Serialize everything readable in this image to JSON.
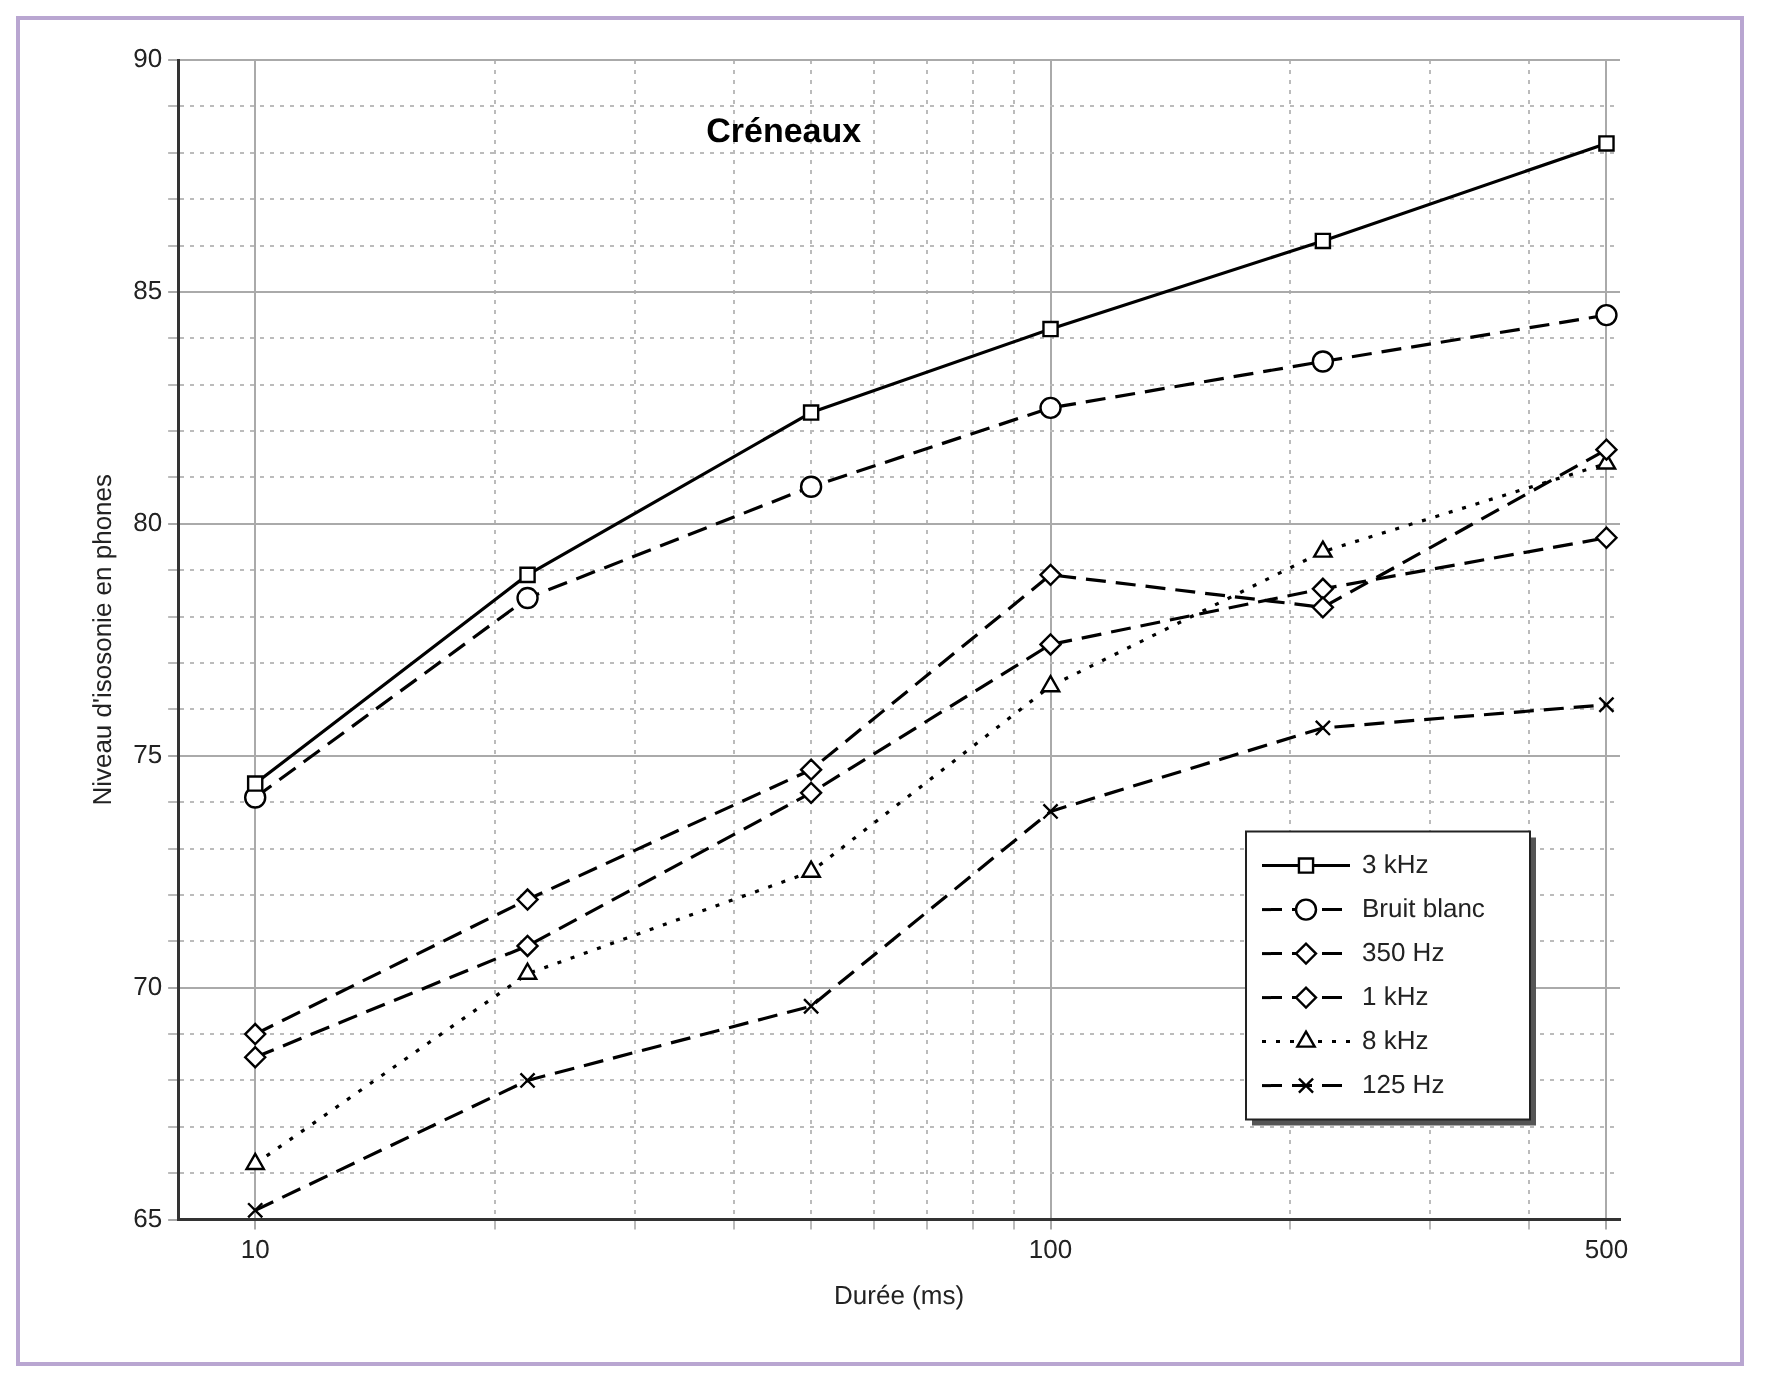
{
  "chart_data": {
    "type": "line",
    "title": "Créneaux",
    "xlabel": "Durée (ms)",
    "ylabel": "Niveau d'isosonie en phones",
    "x": [
      10,
      22,
      50,
      100,
      220,
      500
    ],
    "log": "x",
    "xlim": [
      8,
      520
    ],
    "ylim": [
      65,
      90
    ],
    "xticks": [
      10,
      {
        "value": 20,
        "label": null
      },
      {
        "value": 30,
        "label": null
      },
      {
        "value": 40,
        "label": null
      },
      {
        "value": 50,
        "label": null
      },
      {
        "value": 60,
        "label": null
      },
      {
        "value": 70,
        "label": null
      },
      {
        "value": 80,
        "label": null
      },
      {
        "value": 90,
        "label": null
      },
      100,
      {
        "value": 200,
        "label": null
      },
      {
        "value": 300,
        "label": null
      },
      {
        "value": 400,
        "label": null
      },
      500
    ],
    "yticks": [
      65,
      {
        "value": 66,
        "label": null
      },
      {
        "value": 67,
        "label": null
      },
      {
        "value": 68,
        "label": null
      },
      {
        "value": 69,
        "label": null
      },
      70,
      {
        "value": 71,
        "label": null
      },
      {
        "value": 72,
        "label": null
      },
      {
        "value": 73,
        "label": null
      },
      {
        "value": 74,
        "label": null
      },
      75,
      {
        "value": 76,
        "label": null
      },
      {
        "value": 77,
        "label": null
      },
      {
        "value": 78,
        "label": null
      },
      {
        "value": 79,
        "label": null
      },
      80,
      {
        "value": 81,
        "label": null
      },
      {
        "value": 82,
        "label": null
      },
      {
        "value": 83,
        "label": null
      },
      {
        "value": 84,
        "label": null
      },
      85,
      {
        "value": 86,
        "label": null
      },
      {
        "value": 87,
        "label": null
      },
      {
        "value": 88,
        "label": null
      },
      {
        "value": 89,
        "label": null
      },
      90
    ],
    "grid": true,
    "legend": "bottom right",
    "series": [
      {
        "name": "3 kHz",
        "color": "#000000",
        "marker": "square",
        "line_style": "solid",
        "values": [
          74.4,
          78.9,
          82.4,
          84.2,
          86.1,
          88.2
        ]
      },
      {
        "name": "Bruit blanc",
        "color": "#000000",
        "marker": "circle",
        "line_style": "dashed",
        "values": [
          74.1,
          78.4,
          80.8,
          82.5,
          83.5,
          84.5
        ]
      },
      {
        "name": "350 Hz",
        "color": "#000000",
        "marker": "diamond",
        "line_style": "dashed",
        "values": [
          69.0,
          71.9,
          74.7,
          78.9,
          78.2,
          81.6
        ]
      },
      {
        "name": "1 kHz",
        "color": "#000000",
        "marker": "diamond",
        "line_style": "dashed",
        "values": [
          68.5,
          70.9,
          74.2,
          77.4,
          78.6,
          79.7
        ]
      },
      {
        "name": "8 kHz",
        "color": "#000000",
        "marker": "triangle",
        "line_style": "dotted",
        "values": [
          66.2,
          70.3,
          72.5,
          76.5,
          79.4,
          81.3
        ]
      },
      {
        "name": "125 Hz",
        "color": "#000000",
        "marker": "cross",
        "line_style": "dashed",
        "values": [
          65.2,
          68.0,
          69.6,
          73.8,
          75.6,
          76.1
        ]
      }
    ]
  }
}
